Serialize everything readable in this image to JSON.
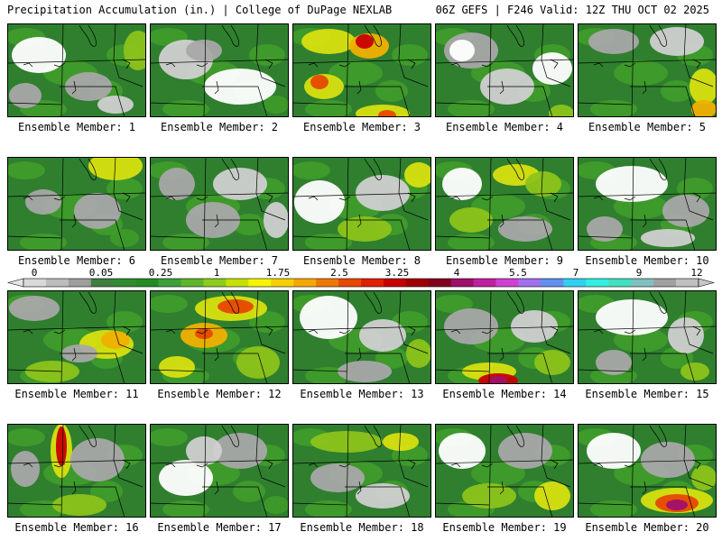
{
  "header": {
    "left": "Precipitation Accumulation (in.) | College of DuPage NEXLAB",
    "right": "06Z GEFS | F246 Valid: 12Z THU OCT 02 2025"
  },
  "panel_label_prefix": "Ensemble Member:",
  "members": [
    "1",
    "2",
    "3",
    "4",
    "5",
    "6",
    "7",
    "8",
    "9",
    "10",
    "11",
    "12",
    "13",
    "14",
    "15",
    "16",
    "17",
    "18",
    "19",
    "20"
  ],
  "colorbar": {
    "labels": [
      "0",
      "0.05",
      "0.25",
      "1",
      "1.75",
      "2.5",
      "3.25",
      "4",
      "5.5",
      "7",
      "9",
      "12"
    ],
    "colors": [
      "#d9d9d9",
      "#bcbcbc",
      "#9e9e9e",
      "#3f7f3f",
      "#2e8b2e",
      "#228b22",
      "#3ca03c",
      "#5fb52b",
      "#8ccc1a",
      "#c8e000",
      "#f5f500",
      "#f5d000",
      "#f5a800",
      "#f07800",
      "#e84800",
      "#e02000",
      "#c80000",
      "#a00000",
      "#800020",
      "#a0106a",
      "#c020a0",
      "#d040d0",
      "#a070f0",
      "#6090f0",
      "#30d0f0",
      "#30f0e0",
      "#40e0c0",
      "#80c0c0",
      "#a0a0a0",
      "#c0c0c0"
    ]
  },
  "map_colors": {
    "none": "#ffffff",
    "trace_light": "#d0d0d0",
    "trace": "#a8a8a8",
    "light": "#2f7f2f",
    "moderate": "#3e9a2a",
    "heavy_1": "#8cc31a",
    "heavy_2": "#d8e010",
    "heavy_3": "#f0b000",
    "heavy_4": "#e84800",
    "extreme_1": "#c80000",
    "extreme_2": "#a0106a"
  }
}
